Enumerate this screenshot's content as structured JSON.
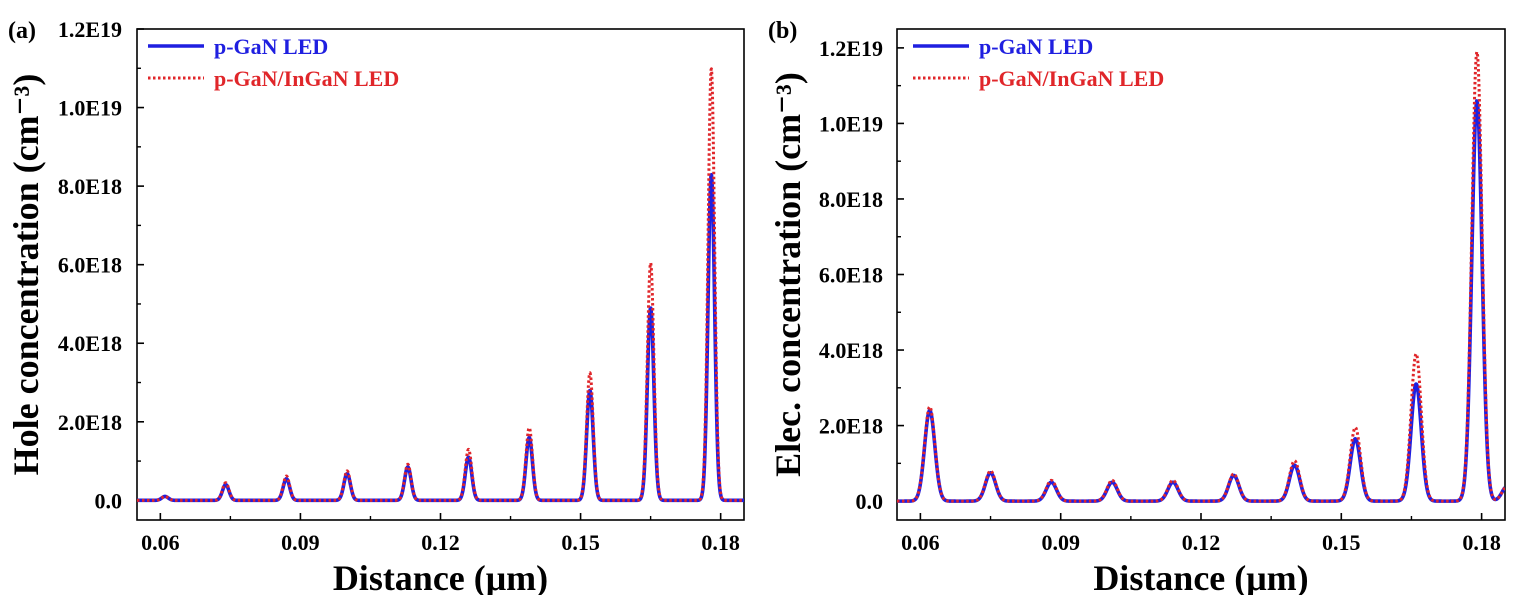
{
  "chart_data": [
    {
      "type": "line",
      "panel_label": "(a)",
      "xlabel": "Distance (μm)",
      "ylabel": "Hole concentration (cm⁻³)",
      "xlim": [
        0.055,
        0.185
      ],
      "ylim": [
        -5e+17,
        1.2e+19
      ],
      "xticks": [
        0.06,
        0.09,
        0.12,
        0.15,
        0.18
      ],
      "xtick_labels": [
        "0.06",
        "0.09",
        "0.12",
        "0.15",
        "0.18"
      ],
      "yticks": [
        0,
        2e+18,
        4e+18,
        6e+18,
        8e+18,
        1e+19,
        1.2e+19
      ],
      "ytick_labels": [
        "0.0",
        "2.0E18",
        "4.0E18",
        "6.0E18",
        "8.0E18",
        "1.0E19",
        "1.2E19"
      ],
      "legend_position": "top-left",
      "peak_width": 0.0007,
      "series": [
        {
          "name": "p-GaN LED",
          "style": "solid",
          "color": "#1f1fe0",
          "peak_x": [
            0.061,
            0.074,
            0.087,
            0.1,
            0.113,
            0.126,
            0.139,
            0.152,
            0.165,
            0.178
          ],
          "peak_y": [
            1e+17,
            4e+17,
            5.5e+17,
            6.8e+17,
            8.5e+17,
            1.1e+18,
            1.6e+18,
            2.8e+18,
            4.9e+18,
            8.3e+18
          ]
        },
        {
          "name": "p-GaN/InGaN LED",
          "style": "dotted",
          "color": "#e0262a",
          "peak_x": [
            0.061,
            0.074,
            0.087,
            0.1,
            0.113,
            0.126,
            0.139,
            0.152,
            0.165,
            0.178
          ],
          "peak_y": [
            1e+17,
            4.5e+17,
            6.2e+17,
            7.5e+17,
            9.2e+17,
            1.3e+18,
            1.85e+18,
            3.25e+18,
            6.05e+18,
            1.1e+19
          ]
        }
      ]
    },
    {
      "type": "line",
      "panel_label": "(b)",
      "xlabel": "Distance (μm)",
      "ylabel": "Elec. concentration (cm⁻³)",
      "xlim": [
        0.055,
        0.185
      ],
      "ylim": [
        -5e+17,
        1.25e+19
      ],
      "xticks": [
        0.06,
        0.09,
        0.12,
        0.15,
        0.18
      ],
      "xtick_labels": [
        "0.06",
        "0.09",
        "0.12",
        "0.15",
        "0.18"
      ],
      "yticks": [
        0,
        2e+18,
        4e+18,
        6e+18,
        8e+18,
        1e+19,
        1.2e+19
      ],
      "ytick_labels": [
        "0.0",
        "2.0E18",
        "4.0E18",
        "6.0E18",
        "8.0E18",
        "1.0E19",
        "1.2E19"
      ],
      "legend_position": "top-left",
      "peak_width": 0.0011,
      "series": [
        {
          "name": "p-GaN LED",
          "style": "solid",
          "color": "#1f1fe0",
          "peak_x": [
            0.062,
            0.075,
            0.088,
            0.101,
            0.114,
            0.127,
            0.14,
            0.153,
            0.166,
            0.179,
            0.1855
          ],
          "peak_y": [
            2.4e+18,
            7.5e+17,
            5e+17,
            5e+17,
            5e+17,
            6.8e+17,
            9.5e+17,
            1.65e+18,
            3.1e+18,
            1.06e+19,
            4e+17
          ]
        },
        {
          "name": "p-GaN/InGaN LED",
          "style": "dotted",
          "color": "#e0262a",
          "peak_x": [
            0.062,
            0.075,
            0.088,
            0.101,
            0.114,
            0.127,
            0.14,
            0.153,
            0.166,
            0.179,
            0.1855
          ],
          "peak_y": [
            2.5e+18,
            8e+17,
            5.5e+17,
            5.5e+17,
            5.5e+17,
            7.2e+17,
            1.07e+18,
            1.95e+18,
            3.9e+18,
            1.19e+19,
            4e+17
          ]
        }
      ]
    }
  ]
}
